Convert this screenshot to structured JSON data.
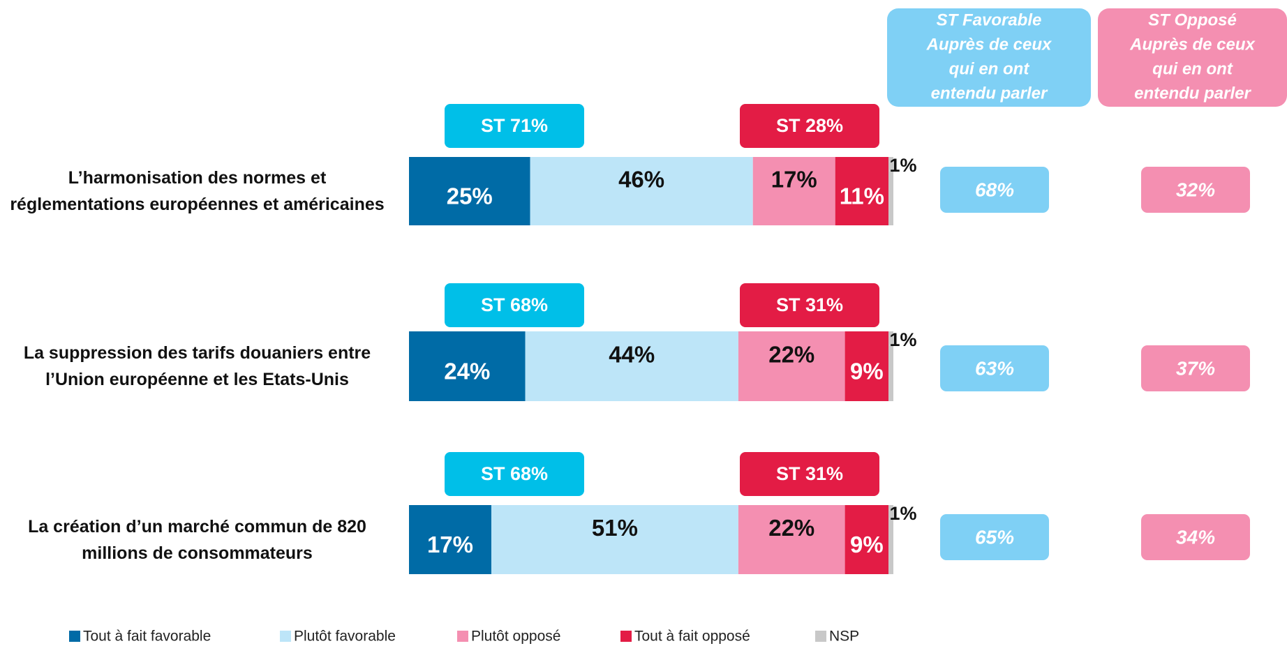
{
  "chart_data": {
    "type": "stacked_barh",
    "categories": [
      "L’harmonisation des normes et réglementations européennes et américaines",
      "La suppression des tarifs douaniers entre l’Union européenne et les Etats-Unis",
      "La création d’un marché commun de 820 millions de consommateurs"
    ],
    "xlim": [
      0,
      100
    ],
    "series": [
      {
        "name": "Tout à fait favorable",
        "color": "#006ba6",
        "values": [
          25,
          24,
          17
        ],
        "value_labels": [
          "25%",
          "24%",
          "17%"
        ]
      },
      {
        "name": "Plutôt favorable",
        "color": "#bde5f8",
        "values": [
          46,
          44,
          51
        ],
        "value_labels": [
          "46%",
          "44%",
          "51%"
        ]
      },
      {
        "name": "Plutôt opposé",
        "color": "#f48fb1",
        "values": [
          17,
          22,
          22
        ],
        "value_labels": [
          "17%",
          "22%",
          "22%"
        ]
      },
      {
        "name": "Tout à fait opposé",
        "color": "#e31c45",
        "values": [
          11,
          9,
          9
        ],
        "value_labels": [
          "11%",
          "9%",
          "9%"
        ]
      },
      {
        "name": "NSP",
        "color": "#c8c8c8",
        "values": [
          1,
          1,
          1
        ],
        "value_labels": [
          "1%",
          "1%",
          "1%"
        ]
      }
    ],
    "st_favorable": {
      "color": "#00bfe8",
      "labels": [
        "ST 71%",
        "ST 68%",
        "ST 68%"
      ]
    },
    "st_oppose": {
      "color": "#e31c45",
      "labels": [
        "ST 28%",
        "ST 31%",
        "ST 31%"
      ]
    },
    "side_columns": [
      {
        "header": [
          "ST Favorable",
          "Auprès de ceux",
          "qui en ont",
          "entendu parler"
        ],
        "color": "#7fd0f5",
        "labels": [
          "68%",
          "63%",
          "65%"
        ]
      },
      {
        "header": [
          "ST Opposé",
          "Auprès de ceux",
          "qui en ont",
          "entendu parler"
        ],
        "color": "#f48fb1",
        "labels": [
          "32%",
          "37%",
          "34%"
        ]
      }
    ]
  }
}
